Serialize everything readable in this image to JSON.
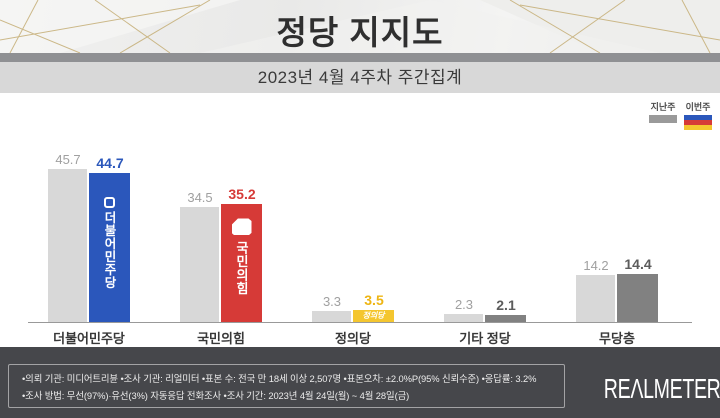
{
  "header": {
    "title": "정당 지지도",
    "subtitle": "2023년 4월 4주차 주간집계"
  },
  "legend": {
    "last_week_label": "지난주",
    "this_week_label": "이번주",
    "last_week_color": "#9a9a9a",
    "this_week_colors": [
      "#2b57bb",
      "#d63a37",
      "#f4c62f"
    ]
  },
  "chart_data": {
    "type": "bar",
    "title": "정당 지지도",
    "subtitle": "2023년 4월 4주차 주간집계",
    "categories": [
      "더불어민주당",
      "국민의힘",
      "정의당",
      "기타 정당",
      "무당층"
    ],
    "series": [
      {
        "name": "지난주",
        "values": [
          45.7,
          34.5,
          3.3,
          2.3,
          14.2
        ],
        "color": "#d8d8d8",
        "label_color": "#a0a0a0"
      },
      {
        "name": "이번주",
        "values": [
          44.7,
          35.2,
          3.5,
          2.1,
          14.4
        ],
        "colors": [
          "#2b57bb",
          "#d63a37",
          "#f4c62f",
          "#818181",
          "#818181"
        ],
        "label_colors": [
          "#2b57bb",
          "#d63a37",
          "#eeb513",
          "#5c5c5c",
          "#5c5c5c"
        ]
      }
    ],
    "bar_inner_labels": [
      "더불어민주당",
      "국민의힘",
      "정의당",
      "",
      ""
    ],
    "ylim": [
      0,
      50
    ],
    "grid": false,
    "legend_position": "top-right"
  },
  "footer": {
    "line1": "•의뢰 기관: 미디어트리뷴  •조사 기관: 리얼미터 •표본 수: 전국 만 18세 이상 2,507명 •표본오차: ±2.0%P(95% 신뢰수준) •응답률: 3.2%",
    "line2": "•조사 방법: 무선(97%)·유선(3%) 자동응답 전화조사 •조사 기간: 2023년 4월 24일(월) ~ 4월 28일(금)",
    "brand": "REΛLMETER"
  }
}
